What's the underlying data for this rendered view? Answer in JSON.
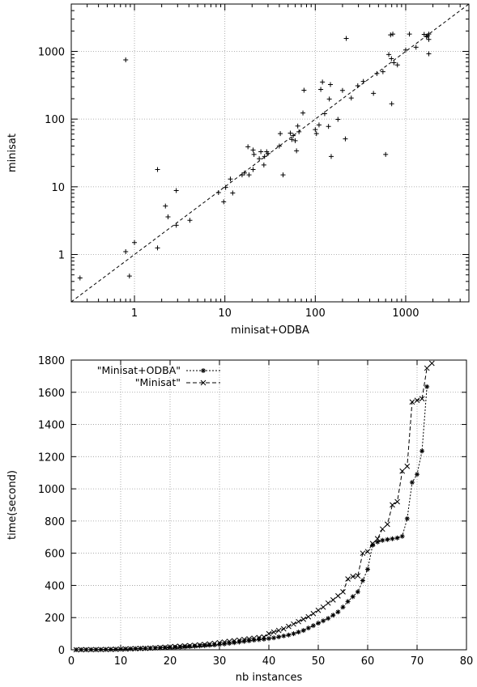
{
  "chart_data": [
    {
      "type": "scatter",
      "title": "",
      "xlabel": "minisat+ODBA",
      "ylabel": "minisat",
      "xscale": "log",
      "yscale": "log",
      "xlim": [
        0.2,
        5000
      ],
      "ylim": [
        0.2,
        5000
      ],
      "xticks": [
        1,
        10,
        100,
        1000
      ],
      "yticks": [
        1,
        10,
        100,
        1000
      ],
      "xtick_labels": [
        "1",
        "10",
        "100",
        "1000"
      ],
      "ytick_labels": [
        "1",
        "10",
        "100",
        "1000"
      ],
      "grid": true,
      "reference_line": "y = x",
      "marker": "+",
      "points": [
        [
          0.25,
          0.45
        ],
        [
          0.8,
          750
        ],
        [
          0.8,
          1.1
        ],
        [
          0.88,
          0.48
        ],
        [
          1.0,
          1.5
        ],
        [
          1.8,
          18
        ],
        [
          1.8,
          1.25
        ],
        [
          2.2,
          5.2
        ],
        [
          2.35,
          3.6
        ],
        [
          2.9,
          8.8
        ],
        [
          2.9,
          2.7
        ],
        [
          4.1,
          3.2
        ],
        [
          8.5,
          8.2
        ],
        [
          9.7,
          6.0
        ],
        [
          10.2,
          9.8
        ],
        [
          11.5,
          13
        ],
        [
          12.2,
          8.1
        ],
        [
          15.5,
          15
        ],
        [
          16.5,
          16
        ],
        [
          18,
          39
        ],
        [
          18.5,
          15
        ],
        [
          20.5,
          35
        ],
        [
          20.5,
          18
        ],
        [
          21,
          30
        ],
        [
          24,
          26
        ],
        [
          25,
          33
        ],
        [
          27.5,
          28
        ],
        [
          27,
          21
        ],
        [
          29,
          33
        ],
        [
          30,
          31
        ],
        [
          40,
          40
        ],
        [
          41,
          61
        ],
        [
          44,
          15
        ],
        [
          53,
          62
        ],
        [
          55,
          50
        ],
        [
          57,
          57
        ],
        [
          60,
          48
        ],
        [
          62,
          34
        ],
        [
          64,
          79
        ],
        [
          66,
          65
        ],
        [
          73,
          123
        ],
        [
          75,
          267
        ],
        [
          100,
          70
        ],
        [
          103,
          61
        ],
        [
          110,
          82
        ],
        [
          115,
          274
        ],
        [
          120,
          352
        ],
        [
          127,
          120
        ],
        [
          140,
          78
        ],
        [
          143,
          198
        ],
        [
          147,
          323
        ],
        [
          150,
          28
        ],
        [
          178,
          99
        ],
        [
          200,
          265
        ],
        [
          215,
          51
        ],
        [
          220,
          1550
        ],
        [
          250,
          205
        ],
        [
          295,
          310
        ],
        [
          340,
          360
        ],
        [
          440,
          240
        ],
        [
          480,
          470
        ],
        [
          560,
          500
        ],
        [
          600,
          30
        ],
        [
          650,
          900
        ],
        [
          680,
          1750
        ],
        [
          695,
          780
        ],
        [
          700,
          168
        ],
        [
          720,
          1800
        ],
        [
          740,
          680
        ],
        [
          810,
          630
        ],
        [
          1000,
          1050
        ],
        [
          1100,
          1800
        ],
        [
          1300,
          1150
        ],
        [
          1600,
          1780
        ],
        [
          1700,
          1650
        ],
        [
          1800,
          920
        ],
        [
          1800,
          1500
        ],
        [
          1800,
          1800
        ],
        [
          1750,
          1700
        ]
      ]
    },
    {
      "type": "line",
      "title": "",
      "xlabel": "nb instances",
      "ylabel": "time(second)",
      "xlim": [
        0,
        80
      ],
      "ylim": [
        0,
        1800
      ],
      "xticks": [
        0,
        10,
        20,
        30,
        40,
        50,
        60,
        70,
        80
      ],
      "yticks": [
        0,
        200,
        400,
        600,
        800,
        1000,
        1200,
        1400,
        1600,
        1800
      ],
      "xtick_labels": [
        "0",
        "10",
        "20",
        "30",
        "40",
        "50",
        "60",
        "70",
        "80"
      ],
      "ytick_labels": [
        "0",
        "200",
        "400",
        "600",
        "800",
        "1000",
        "1200",
        "1400",
        "1600",
        "1800"
      ],
      "grid": true,
      "legend_position": "top-left",
      "series": [
        {
          "name": "\"Minisat+ODBA\"",
          "marker": "*",
          "dash": "2 2",
          "x": [
            1,
            2,
            3,
            4,
            5,
            6,
            7,
            8,
            9,
            10,
            11,
            12,
            13,
            14,
            15,
            16,
            17,
            18,
            19,
            20,
            21,
            22,
            23,
            24,
            25,
            26,
            27,
            28,
            29,
            30,
            31,
            32,
            33,
            34,
            35,
            36,
            37,
            38,
            39,
            40,
            41,
            42,
            43,
            44,
            45,
            46,
            47,
            48,
            49,
            50,
            51,
            52,
            53,
            54,
            55,
            56,
            57,
            58,
            59,
            60,
            61,
            62,
            63,
            64,
            65,
            66,
            67,
            68,
            69,
            70,
            71,
            72
          ],
          "y": [
            0.3,
            0.5,
            0.8,
            1,
            1.2,
            1.5,
            2,
            2.5,
            3,
            4,
            5,
            6,
            7,
            8,
            9,
            10,
            11,
            12,
            13,
            14,
            15,
            16,
            18,
            20,
            22,
            24,
            26,
            28,
            30,
            33,
            36,
            40,
            44,
            48,
            52,
            56,
            60,
            63,
            66,
            70,
            74,
            80,
            86,
            92,
            100,
            110,
            120,
            135,
            150,
            165,
            180,
            195,
            215,
            235,
            265,
            300,
            330,
            360,
            430,
            500,
            650,
            670,
            680,
            685,
            690,
            695,
            705,
            815,
            1040,
            1090,
            1235,
            1635
          ]
        },
        {
          "name": "\"Minisat\"",
          "marker": "x",
          "dash": "5 3",
          "x": [
            1,
            2,
            3,
            4,
            5,
            6,
            7,
            8,
            9,
            10,
            11,
            12,
            13,
            14,
            15,
            16,
            17,
            18,
            19,
            20,
            21,
            22,
            23,
            24,
            25,
            26,
            27,
            28,
            29,
            30,
            31,
            32,
            33,
            34,
            35,
            36,
            37,
            38,
            39,
            40,
            41,
            42,
            43,
            44,
            45,
            46,
            47,
            48,
            49,
            50,
            51,
            52,
            53,
            54,
            55,
            56,
            57,
            58,
            59,
            60,
            61,
            62,
            63,
            64,
            65,
            66,
            67,
            68,
            69,
            70,
            71,
            72,
            73
          ],
          "y": [
            0.3,
            0.5,
            0.8,
            1,
            1.2,
            1.5,
            2,
            2.5,
            3,
            4,
            5,
            6,
            7,
            8,
            9,
            10,
            12,
            14,
            16,
            18,
            20,
            22,
            24,
            26,
            28,
            30,
            33,
            36,
            40,
            44,
            48,
            52,
            56,
            60,
            64,
            68,
            72,
            76,
            80,
            100,
            110,
            120,
            130,
            145,
            160,
            175,
            190,
            205,
            225,
            245,
            265,
            290,
            310,
            335,
            360,
            440,
            455,
            460,
            600,
            610,
            660,
            690,
            750,
            780,
            900,
            920,
            1110,
            1140,
            1540,
            1550,
            1560,
            1750,
            1780
          ]
        }
      ]
    }
  ]
}
